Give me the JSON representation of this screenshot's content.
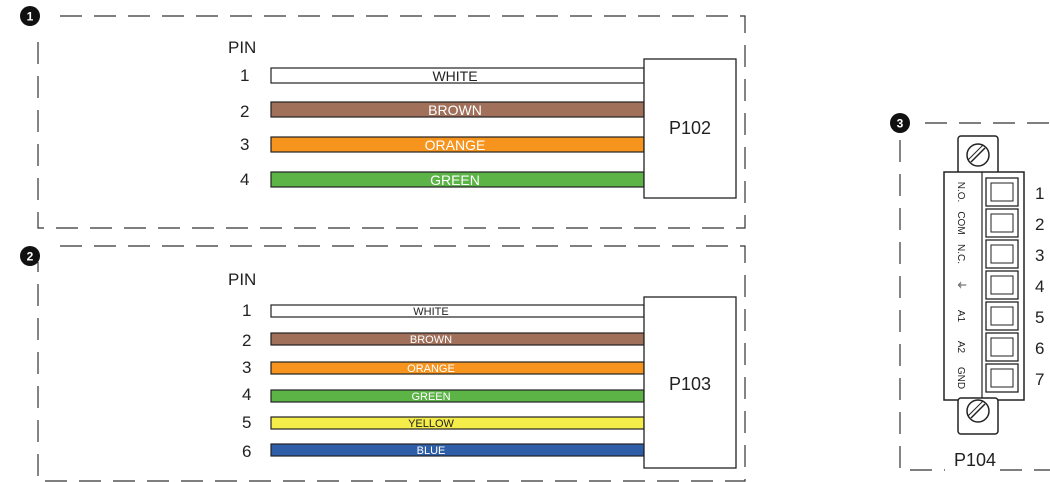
{
  "panels": [
    {
      "badge": "1",
      "pin_header": "PIN",
      "connector": "P102",
      "wires": [
        {
          "pin": "1",
          "label": "WHITE",
          "color": "#ffffff",
          "text_color": "#222222"
        },
        {
          "pin": "2",
          "label": "BROWN",
          "color": "#a0705a",
          "text_color": "#ffffff"
        },
        {
          "pin": "3",
          "label": "ORANGE",
          "color": "#f7941d",
          "text_color": "#ffffff"
        },
        {
          "pin": "4",
          "label": "GREEN",
          "color": "#5cb346",
          "text_color": "#ffffff"
        }
      ]
    },
    {
      "badge": "2",
      "pin_header": "PIN",
      "connector": "P103",
      "wires": [
        {
          "pin": "1",
          "label": "WHITE",
          "color": "#ffffff",
          "text_color": "#222222"
        },
        {
          "pin": "2",
          "label": "BROWN",
          "color": "#a0705a",
          "text_color": "#ffffff"
        },
        {
          "pin": "3",
          "label": "ORANGE",
          "color": "#f7941d",
          "text_color": "#ffffff"
        },
        {
          "pin": "4",
          "label": "GREEN",
          "color": "#5cb346",
          "text_color": "#ffffff"
        },
        {
          "pin": "5",
          "label": "YELLOW",
          "color": "#f4ed4a",
          "text_color": "#222222"
        },
        {
          "pin": "6",
          "label": "BLUE",
          "color": "#2f5ea8",
          "text_color": "#ffffff"
        }
      ]
    }
  ],
  "terminal_block": {
    "badge": "3",
    "connector": "P104",
    "terminals": [
      {
        "num": "1",
        "label": "N.O."
      },
      {
        "num": "2",
        "label": "COM"
      },
      {
        "num": "3",
        "label": "N.C."
      },
      {
        "num": "4",
        "label": "⏚"
      },
      {
        "num": "5",
        "label": "A1"
      },
      {
        "num": "6",
        "label": "A2"
      },
      {
        "num": "7",
        "label": "GND"
      }
    ]
  }
}
